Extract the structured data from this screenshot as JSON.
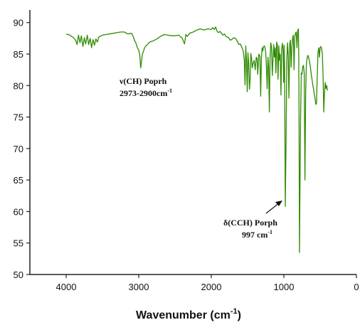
{
  "chart_data": {
    "type": "line",
    "title": "",
    "xlabel": "Wavenumber (cm",
    "xlabel_sup": "-1",
    "xlabel_end": ")",
    "ylabel": "",
    "xlim": [
      4500,
      0
    ],
    "ylim": [
      50,
      92
    ],
    "xticks": [
      4000,
      3000,
      2000,
      1000,
      0
    ],
    "yticks": [
      50,
      55,
      60,
      65,
      70,
      75,
      80,
      85,
      90
    ],
    "grid": false,
    "legend": "none",
    "line_color": "#2e8b00",
    "series": [
      {
        "x": [
          4000,
          3950,
          3900,
          3870,
          3850,
          3830,
          3810,
          3790,
          3770,
          3750,
          3730,
          3710,
          3690,
          3670,
          3650,
          3630,
          3610,
          3590,
          3570,
          3550,
          3500,
          3450,
          3400,
          3350,
          3300,
          3250,
          3200,
          3150,
          3100,
          3080,
          3060,
          3040,
          3020,
          3000,
          2985,
          2973,
          2960,
          2950,
          2935,
          2920,
          2900,
          2880,
          2850,
          2800,
          2750,
          2700,
          2650,
          2600,
          2550,
          2500,
          2450,
          2400,
          2370,
          2350,
          2330,
          2300,
          2250,
          2200,
          2150,
          2100,
          2050,
          2000,
          1980,
          1960,
          1940,
          1920,
          1900,
          1880,
          1860,
          1840,
          1820,
          1800,
          1780,
          1760,
          1740,
          1720,
          1700,
          1680,
          1660,
          1640,
          1620,
          1600,
          1580,
          1560,
          1545,
          1535,
          1525,
          1515,
          1505,
          1495,
          1485,
          1475,
          1465,
          1455,
          1445,
          1435,
          1425,
          1410,
          1395,
          1380,
          1370,
          1360,
          1345,
          1330,
          1320,
          1310,
          1300,
          1290,
          1280,
          1270,
          1260,
          1250,
          1240,
          1230,
          1220,
          1210,
          1200,
          1190,
          1180,
          1170,
          1160,
          1150,
          1140,
          1130,
          1120,
          1110,
          1100,
          1090,
          1080,
          1070,
          1060,
          1050,
          1040,
          1030,
          1020,
          1010,
          1003,
          997,
          990,
          980,
          970,
          960,
          950,
          940,
          930,
          920,
          910,
          900,
          890,
          880,
          870,
          860,
          850,
          840,
          830,
          820,
          810,
          800,
          795,
          790,
          785,
          780,
          770,
          760,
          750,
          740,
          730,
          720,
          710,
          700,
          690,
          680,
          670,
          660,
          650,
          640,
          630,
          620,
          610,
          600,
          590,
          580,
          570,
          560,
          550,
          540,
          530,
          520,
          510,
          500,
          490,
          480,
          470,
          460,
          450,
          440,
          430,
          420,
          410,
          400
        ],
        "y": [
          88.2,
          88.0,
          87.6,
          87.2,
          86.5,
          88.0,
          86.8,
          87.9,
          86.2,
          87.6,
          86.6,
          88.0,
          86.5,
          87.5,
          86.0,
          87.3,
          86.4,
          87.4,
          86.9,
          87.7,
          88.0,
          88.1,
          88.2,
          88.3,
          88.4,
          88.5,
          88.5,
          88.2,
          88.3,
          87.9,
          87.2,
          86.8,
          86.0,
          85.6,
          84.8,
          82.8,
          84.0,
          85.0,
          85.4,
          86.0,
          86.3,
          86.5,
          86.9,
          87.1,
          87.4,
          87.8,
          88.1,
          88.0,
          87.9,
          87.9,
          88.0,
          87.5,
          86.6,
          88.1,
          87.8,
          88.3,
          88.5,
          88.8,
          89.0,
          88.8,
          89.0,
          88.9,
          89.2,
          88.9,
          89.3,
          88.6,
          88.4,
          88.6,
          88.3,
          88.0,
          88.2,
          87.8,
          87.7,
          87.6,
          87.2,
          87.3,
          87.5,
          87.6,
          87.4,
          87.0,
          86.5,
          86.6,
          86.1,
          85.5,
          84.0,
          80.1,
          86.3,
          83.8,
          79.0,
          85.2,
          83.5,
          79.4,
          81.0,
          85.1,
          84.3,
          82.8,
          83.5,
          84.0,
          82.5,
          84.5,
          84.3,
          81.8,
          85.0,
          84.7,
          78.3,
          84.2,
          86.0,
          85.5,
          86.2,
          86.3,
          86.0,
          85.2,
          83.0,
          79.5,
          84.5,
          83.0,
          75.8,
          84.3,
          86.8,
          86.0,
          81.6,
          84.0,
          86.5,
          84.5,
          86.0,
          82.0,
          86.9,
          86.5,
          81.0,
          86.3,
          84.0,
          85.0,
          78.5,
          85.8,
          86.7,
          85.3,
          80.5,
          86.4,
          83.0,
          60.8,
          71.5,
          84.0,
          86.8,
          84.8,
          78.0,
          86.6,
          87.2,
          82.9,
          86.0,
          87.5,
          88.0,
          82.5,
          87.7,
          88.3,
          88.5,
          86.0,
          88.7,
          89.0,
          85.0,
          72.8,
          53.5,
          60.5,
          75.0,
          82.0,
          81.8,
          83.0,
          83.2,
          82.0,
          65.0,
          78.4,
          83.4,
          84.3,
          84.8,
          84.5,
          84.0,
          83.4,
          82.5,
          81.5,
          80.8,
          80.0,
          79.4,
          78.6,
          77.9,
          77.0,
          77.2,
          81.5,
          85.2,
          86.0,
          84.5,
          86.0,
          86.2,
          85.9,
          85.0,
          81.5,
          75.8,
          79.0,
          80.5,
          79.5,
          80.0,
          79.2
        ]
      }
    ],
    "annotations": [
      {
        "line1": "ν(CH) Poprh",
        "line2": "2973-2900cm",
        "line2_sup": "-1",
        "x": 2973,
        "y": 82.8
      },
      {
        "line1": "δ(CCH) Porph",
        "line2": "997 cm",
        "line2_sup": "-1",
        "x": 997,
        "y": 60.8
      }
    ]
  }
}
